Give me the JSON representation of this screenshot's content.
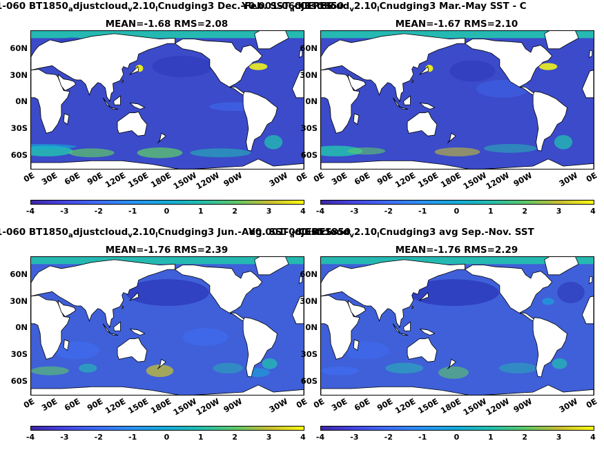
{
  "colors": {
    "land": "#ffffff",
    "ocean_low": "#3e26a8",
    "ocean_mid": "#2b92f3",
    "ocean_high": "#f9fa14",
    "arctic": "#25b9b2"
  },
  "colorbar_ticks": [
    "-4",
    "-3",
    "-2",
    "-1",
    "0",
    "1",
    "2",
    "3",
    "4"
  ],
  "lat_ticks": [
    "60N",
    "30N",
    "0N",
    "30S",
    "60S"
  ],
  "lon_ticks": [
    "0E",
    "30E",
    "60E",
    "90E",
    "120E",
    "150E",
    "180E",
    "150W",
    "120W",
    "90W",
    "30W",
    "0E"
  ],
  "chart_data": [
    {
      "type": "heatmap",
      "title_prefix": "1-060 BT1850",
      "title_sub1": "a",
      "title_mid1": "djustcloud",
      "title_sub2": "v",
      "title_mid2": "2.10",
      "title_sub3": "l",
      "title_mid3": "Cnudging3  Dec.-Feb. SST - CERES",
      "title_overlap": "Y0.001-060 BT1850",
      "stats": "MEAN=-1.68   RMS=2.08",
      "clim": [
        -4,
        4
      ],
      "mean": -1.68,
      "rms": 2.08
    },
    {
      "type": "heatmap",
      "title_prefix": "",
      "title_sub1": "a",
      "title_mid1": "djustcloud",
      "title_sub2": "v",
      "title_mid2": "2.10",
      "title_sub3": "l",
      "title_mid3": "Cnudging3 Mar.-May SST - C",
      "title_overlap": "",
      "stats": "MEAN=-1.67   RMS=2.10",
      "clim": [
        -4,
        4
      ],
      "mean": -1.67,
      "rms": 2.1
    },
    {
      "type": "heatmap",
      "title_prefix": "1-060 BT1850",
      "title_sub1": "a",
      "title_mid1": "djustcloud",
      "title_sub2": "v",
      "title_mid2": "2.10",
      "title_sub3": "l",
      "title_mid3": "Cnudging3 Jun.-Aug. SST - CERES",
      "title_overlap": "Y0.001-060 BT1850",
      "stats": "MEAN=-1.76   RMS=2.39",
      "clim": [
        -4,
        4
      ],
      "mean": -1.76,
      "rms": 2.39
    },
    {
      "type": "heatmap",
      "title_prefix": "",
      "title_sub1": "a",
      "title_mid1": "djustcloud",
      "title_sub2": "v",
      "title_mid2": "2.10",
      "title_sub3": "l",
      "title_mid3": "Cnudging3 avg Sep.-Nov. SST",
      "title_overlap": "",
      "stats": "MEAN=-1.76   RMS=2.29",
      "clim": [
        -4,
        4
      ],
      "mean": -1.76,
      "rms": 2.29
    }
  ]
}
